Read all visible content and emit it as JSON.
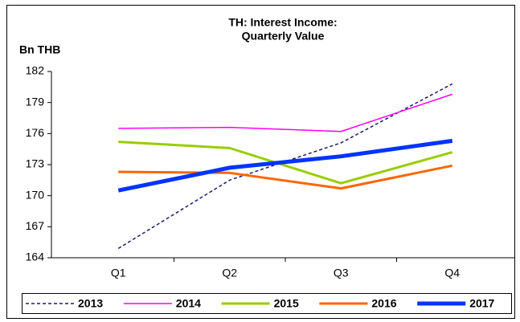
{
  "chart_data": {
    "type": "line",
    "title": [
      "TH: Interest Income:",
      "Quarterly Value"
    ],
    "y_label": "Bn THB",
    "categories": [
      "Q1",
      "Q2",
      "Q3",
      "Q4"
    ],
    "series": [
      {
        "name": "2013",
        "color": "#1a1a6e",
        "width": 1.5,
        "dash": "4,3",
        "values": [
          164.9,
          171.5,
          175.1,
          180.8
        ]
      },
      {
        "name": "2014",
        "color": "#ff00ff",
        "width": 1.5,
        "values": [
          176.5,
          176.6,
          176.2,
          179.8
        ]
      },
      {
        "name": "2015",
        "color": "#99cc00",
        "width": 3,
        "values": [
          175.2,
          174.6,
          171.2,
          174.2
        ]
      },
      {
        "name": "2016",
        "color": "#ff6600",
        "width": 3,
        "values": [
          172.3,
          172.2,
          170.7,
          172.9
        ]
      },
      {
        "name": "2017",
        "color": "#0033ff",
        "width": 5,
        "values": [
          170.5,
          172.7,
          173.8,
          175.3
        ]
      }
    ],
    "ylim": [
      164,
      182
    ],
    "yticks": [
      164,
      167,
      170,
      173,
      176,
      179,
      182
    ],
    "grid": false,
    "legend": "bottom"
  }
}
